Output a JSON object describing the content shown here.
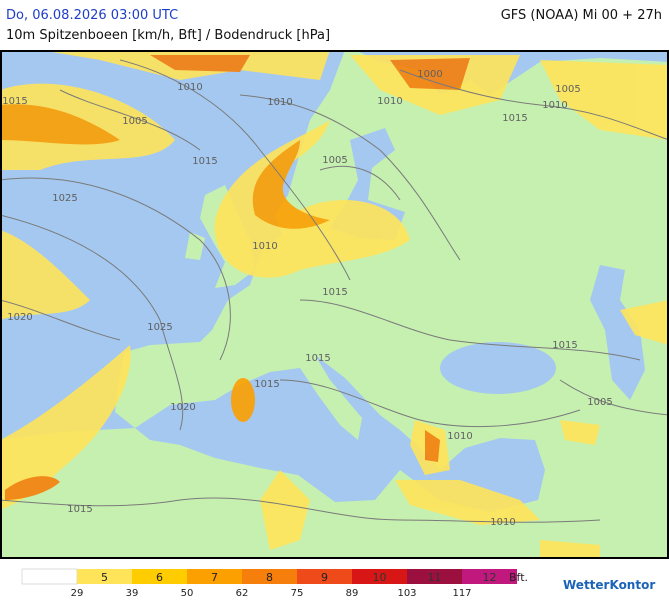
{
  "header": {
    "valid_time": "Do, 06.08.2026 03:00 UTC",
    "model_run": "GFS (NOAA) Mi 00 + 27h",
    "subtitle": "10m Spitzenboeen [km/h, Bft] / Bodendruck [hPa]"
  },
  "isobar_labels": [
    "1010",
    "1015",
    "1005",
    "1010",
    "1000",
    "1010",
    "1005",
    "1010",
    "1015",
    "1015",
    "1005",
    "1025",
    "1010",
    "1015",
    "1020",
    "1025",
    "1015",
    "1015",
    "1015",
    "1020",
    "1010",
    "1005",
    "1015",
    "1010"
  ],
  "legend": {
    "classes": [
      5,
      6,
      7,
      8,
      9,
      10,
      11,
      12
    ],
    "colors": [
      "#ffe45a",
      "#ffcc00",
      "#fca000",
      "#f57f0a",
      "#ee4a1a",
      "#d81616",
      "#9c1040",
      "#c0187c"
    ],
    "kmh": [
      29,
      39,
      50,
      62,
      75,
      89,
      103,
      117
    ],
    "unit": "Bft."
  },
  "logo": "WetterKontor"
}
